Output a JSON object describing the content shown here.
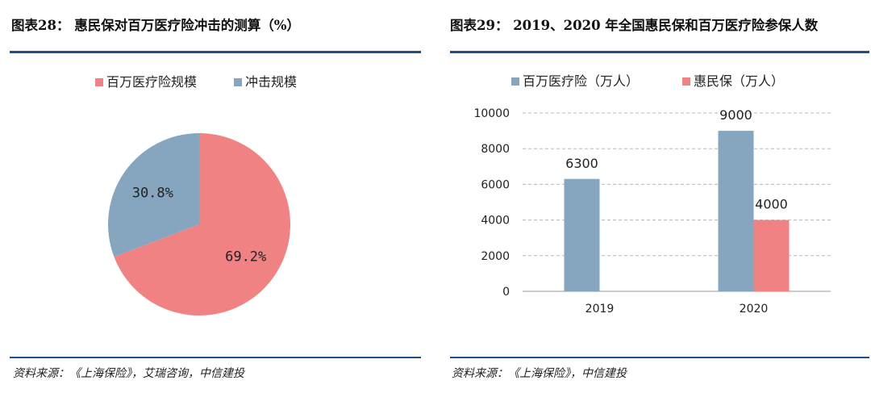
{
  "left": {
    "title": "图表28： 惠民保对百万医疗险冲击的测算（%）",
    "source": "资料来源：《上海保险》，艾瑞咨询，中信建投"
  },
  "right": {
    "title": "图表29： 2019、2020 年全国惠民保和百万医疗险参保人数",
    "source": "资料来源：《上海保险》，中信建投"
  },
  "colors": {
    "pink": "#f08283",
    "blue": "#85a6be",
    "rule": "#1f4e89",
    "grid": "#b8b8b8"
  },
  "chart_data": [
    {
      "type": "pie",
      "labels": [
        "百万医疗险规模",
        "冲击规模"
      ],
      "values": [
        69.2,
        30.8
      ],
      "data_labels": [
        "69.2%",
        "30.8%"
      ],
      "colors": [
        "#f08283",
        "#85a6be"
      ],
      "legend": "top",
      "title": "",
      "xlabel": "",
      "ylabel": ""
    },
    {
      "type": "bar",
      "categories": [
        "2019",
        "2020"
      ],
      "series": [
        {
          "name": "百万医疗险（万人）",
          "values": [
            6300,
            9000
          ],
          "color": "#85a6be"
        },
        {
          "name": "惠民保（万人）",
          "values": [
            null,
            4000
          ],
          "color": "#f08283"
        }
      ],
      "ylim": [
        0,
        10000
      ],
      "yticks": [
        "0",
        "2000",
        "4000",
        "6000",
        "8000",
        "10000"
      ],
      "grid": true,
      "legend": "top",
      "title": "",
      "xlabel": "",
      "ylabel": ""
    }
  ]
}
